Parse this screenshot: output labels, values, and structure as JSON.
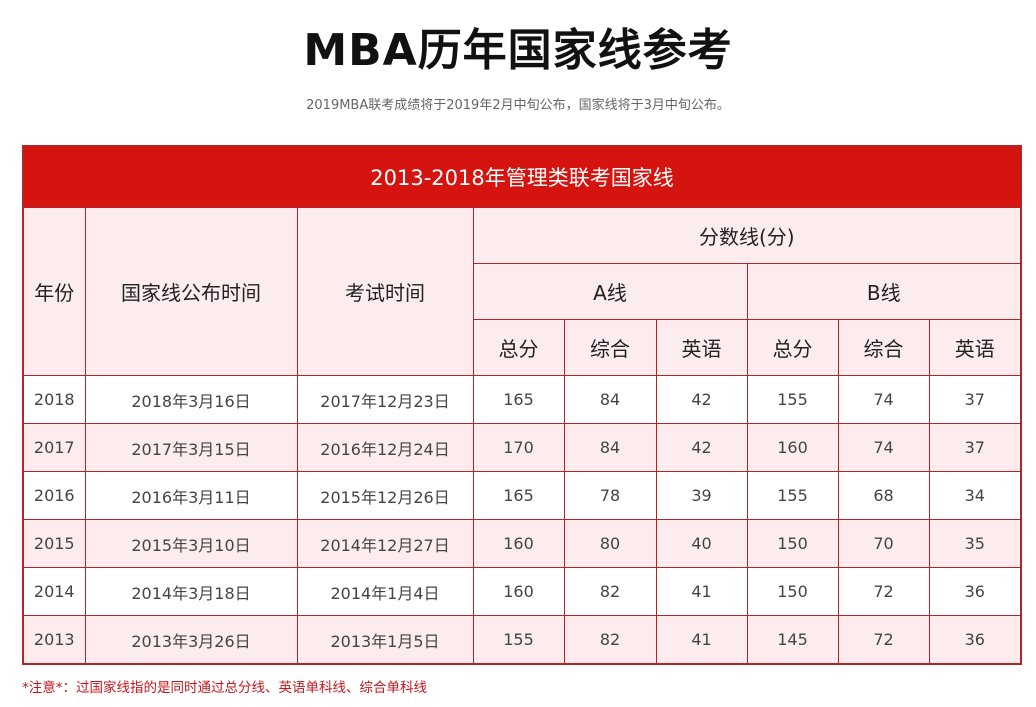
{
  "title": "MBA历年国家线参考",
  "subtitle": "2019MBA联考成绩将于2019年2月中旬公布，国家线将于3月中旬公布。",
  "table": {
    "banner": "2013-2018年管理类联考国家线",
    "headers": {
      "year": "年份",
      "announce_date": "国家线公布时间",
      "exam_date": "考试时间",
      "score_line": "分数线(分)",
      "a_line": "A线",
      "b_line": "B线",
      "total": "总分",
      "comprehensive": "综合",
      "english": "英语"
    },
    "rows": [
      {
        "year": "2018",
        "announce": "2018年3月16日",
        "exam": "2017年12月23日",
        "a_total": "165",
        "a_comp": "84",
        "a_eng": "42",
        "b_total": "155",
        "b_comp": "74",
        "b_eng": "37"
      },
      {
        "year": "2017",
        "announce": "2017年3月15日",
        "exam": "2016年12月24日",
        "a_total": "170",
        "a_comp": "84",
        "a_eng": "42",
        "b_total": "160",
        "b_comp": "74",
        "b_eng": "37"
      },
      {
        "year": "2016",
        "announce": "2016年3月11日",
        "exam": "2015年12月26日",
        "a_total": "165",
        "a_comp": "78",
        "a_eng": "39",
        "b_total": "155",
        "b_comp": "68",
        "b_eng": "34"
      },
      {
        "year": "2015",
        "announce": "2015年3月10日",
        "exam": "2014年12月27日",
        "a_total": "160",
        "a_comp": "80",
        "a_eng": "40",
        "b_total": "150",
        "b_comp": "70",
        "b_eng": "35"
      },
      {
        "year": "2014",
        "announce": "2014年3月18日",
        "exam": "2014年1月4日",
        "a_total": "160",
        "a_comp": "82",
        "a_eng": "41",
        "b_total": "150",
        "b_comp": "72",
        "b_eng": "36"
      },
      {
        "year": "2013",
        "announce": "2013年3月26日",
        "exam": "2013年1月5日",
        "a_total": "155",
        "a_comp": "82",
        "a_eng": "41",
        "b_total": "145",
        "b_comp": "72",
        "b_eng": "36"
      }
    ]
  },
  "note": "*注意*：过国家线指的是同时通过总分线、英语单科线、综合单科线",
  "colors": {
    "banner": "#d6140f",
    "border": "#b3232a",
    "pink": "#fdeced",
    "note": "#c8161d"
  }
}
